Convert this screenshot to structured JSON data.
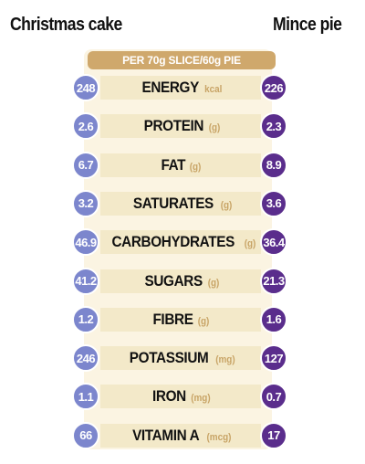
{
  "headers": {
    "left": "Christmas cake",
    "right": "Mince pie"
  },
  "per_label": "PER 70g SLICE/60g PIE",
  "colors": {
    "cake_badge": "#7c86cd",
    "pie_badge": "#5a2d8c",
    "per_bar": "#cfa86c",
    "nutrient_band": "#f3e9c9",
    "unit_text": "#c8a466"
  },
  "rows": [
    {
      "nutrient": "ENERGY",
      "unit": "kcal",
      "cake": "248",
      "pie": "226"
    },
    {
      "nutrient": "PROTEIN",
      "unit": "(g)",
      "cake": "2.6",
      "pie": "2.3"
    },
    {
      "nutrient": "FAT",
      "unit": "(g)",
      "cake": "6.7",
      "pie": "8.9"
    },
    {
      "nutrient": "SATURATES",
      "unit": "(g)",
      "cake": "3.2",
      "pie": "3.6"
    },
    {
      "nutrient": "CARBOHYDRATES",
      "unit": "(g)",
      "cake": "46.9",
      "pie": "36.4"
    },
    {
      "nutrient": "SUGARS",
      "unit": "(g)",
      "cake": "41.2",
      "pie": "21.3"
    },
    {
      "nutrient": "FIBRE",
      "unit": "(g)",
      "cake": "1.2",
      "pie": "1.6"
    },
    {
      "nutrient": "POTASSIUM",
      "unit": "(mg)",
      "cake": "246",
      "pie": "127"
    },
    {
      "nutrient": "IRON",
      "unit": "(mg)",
      "cake": "1.1",
      "pie": "0.7"
    },
    {
      "nutrient": "VITAMIN A",
      "unit": "(mcg)",
      "cake": "66",
      "pie": "17"
    }
  ]
}
